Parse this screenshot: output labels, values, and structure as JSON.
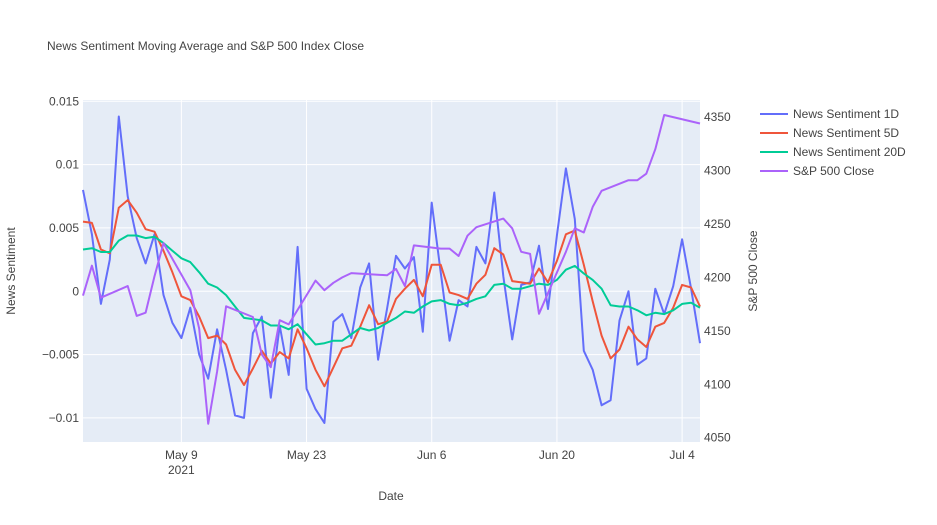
{
  "chart_data": {
    "type": "line",
    "title": "News Sentiment Moving Average and S&P 500 Index Close",
    "xlabel": "Date",
    "ylabel": "News Sentiment",
    "y2label": "S&P 500 Close",
    "x_range": [
      "2021-04-28",
      "2021-07-06"
    ],
    "x_ticks": [
      {
        "date": "2021-05-09",
        "label": "May 9",
        "sublabel": "2021"
      },
      {
        "date": "2021-05-23",
        "label": "May 23",
        "sublabel": ""
      },
      {
        "date": "2021-06-06",
        "label": "Jun 6",
        "sublabel": ""
      },
      {
        "date": "2021-06-20",
        "label": "Jun 20",
        "sublabel": ""
      },
      {
        "date": "2021-07-04",
        "label": "Jul 4",
        "sublabel": ""
      }
    ],
    "ylim": [
      -0.0119,
      0.0151
    ],
    "y_ticks": [
      {
        "value": 0.015,
        "label": "0.015"
      },
      {
        "value": 0.01,
        "label": "0.01"
      },
      {
        "value": 0.005,
        "label": "0.005"
      },
      {
        "value": 0,
        "label": "0"
      },
      {
        "value": -0.005,
        "label": "−0.005"
      },
      {
        "value": -0.01,
        "label": "−0.01"
      }
    ],
    "y2lim": [
      4046,
      4366
    ],
    "y2_ticks": [
      {
        "value": 4050,
        "label": "4050"
      },
      {
        "value": 4100,
        "label": "4100"
      },
      {
        "value": 4150,
        "label": "4150"
      },
      {
        "value": 4200,
        "label": "4200"
      },
      {
        "value": 4250,
        "label": "4250"
      },
      {
        "value": 4300,
        "label": "4300"
      },
      {
        "value": 4350,
        "label": "4350"
      }
    ],
    "grid": true,
    "legend_position": "top-right",
    "series": [
      {
        "name": "News Sentiment 1D",
        "color": "#636efa",
        "axis": "y",
        "x": [
          "2021-04-28",
          "2021-04-29",
          "2021-04-30",
          "2021-05-01",
          "2021-05-02",
          "2021-05-03",
          "2021-05-04",
          "2021-05-05",
          "2021-05-06",
          "2021-05-07",
          "2021-05-08",
          "2021-05-09",
          "2021-05-10",
          "2021-05-11",
          "2021-05-12",
          "2021-05-13",
          "2021-05-14",
          "2021-05-15",
          "2021-05-16",
          "2021-05-17",
          "2021-05-18",
          "2021-05-19",
          "2021-05-20",
          "2021-05-21",
          "2021-05-22",
          "2021-05-23",
          "2021-05-24",
          "2021-05-25",
          "2021-05-26",
          "2021-05-27",
          "2021-05-28",
          "2021-05-29",
          "2021-05-30",
          "2021-05-31",
          "2021-06-01",
          "2021-06-02",
          "2021-06-03",
          "2021-06-04",
          "2021-06-05",
          "2021-06-06",
          "2021-06-07",
          "2021-06-08",
          "2021-06-09",
          "2021-06-10",
          "2021-06-11",
          "2021-06-12",
          "2021-06-13",
          "2021-06-14",
          "2021-06-15",
          "2021-06-16",
          "2021-06-17",
          "2021-06-18",
          "2021-06-19",
          "2021-06-20",
          "2021-06-21",
          "2021-06-22",
          "2021-06-23",
          "2021-06-24",
          "2021-06-25",
          "2021-06-26",
          "2021-06-27",
          "2021-06-28",
          "2021-06-29",
          "2021-06-30",
          "2021-07-01",
          "2021-07-02",
          "2021-07-03",
          "2021-07-04",
          "2021-07-05",
          "2021-07-06"
        ],
        "values": [
          0.008,
          0.0045,
          -0.001,
          0.0025,
          0.0138,
          0.0075,
          0.0042,
          0.0022,
          0.0045,
          -0.0003,
          -0.0025,
          -0.0037,
          -0.0013,
          -0.005,
          -0.0069,
          -0.003,
          -0.0062,
          -0.0098,
          -0.01,
          -0.0033,
          -0.002,
          -0.0084,
          -0.0027,
          -0.0066,
          0.0035,
          -0.0077,
          -0.0093,
          -0.0104,
          -0.0024,
          -0.0018,
          -0.0037,
          0.0003,
          0.0022,
          -0.0054,
          -0.0014,
          0.0028,
          0.0018,
          0.0027,
          -0.0032,
          0.007,
          0.0015,
          -0.0039,
          -0.0007,
          -0.0012,
          0.0035,
          0.0022,
          0.0078,
          0.0012,
          -0.0038,
          0.0005,
          0.0007,
          0.0036,
          -0.0014,
          0.0044,
          0.0097,
          0.0057,
          -0.0047,
          -0.0062,
          -0.009,
          -0.0086,
          -0.0023,
          0.0,
          -0.0058,
          -0.0053,
          0.0002,
          -0.0018,
          0.0004,
          0.0041,
          0.0002,
          -0.0041
        ]
      },
      {
        "name": "News Sentiment 5D",
        "color": "#ef553b",
        "axis": "y",
        "x": [
          "2021-04-28",
          "2021-04-29",
          "2021-04-30",
          "2021-05-01",
          "2021-05-02",
          "2021-05-03",
          "2021-05-04",
          "2021-05-05",
          "2021-05-06",
          "2021-05-07",
          "2021-05-08",
          "2021-05-09",
          "2021-05-10",
          "2021-05-11",
          "2021-05-12",
          "2021-05-13",
          "2021-05-14",
          "2021-05-15",
          "2021-05-16",
          "2021-05-17",
          "2021-05-18",
          "2021-05-19",
          "2021-05-20",
          "2021-05-21",
          "2021-05-22",
          "2021-05-23",
          "2021-05-24",
          "2021-05-25",
          "2021-05-26",
          "2021-05-27",
          "2021-05-28",
          "2021-05-29",
          "2021-05-30",
          "2021-05-31",
          "2021-06-01",
          "2021-06-02",
          "2021-06-03",
          "2021-06-04",
          "2021-06-05",
          "2021-06-06",
          "2021-06-07",
          "2021-06-08",
          "2021-06-09",
          "2021-06-10",
          "2021-06-11",
          "2021-06-12",
          "2021-06-13",
          "2021-06-14",
          "2021-06-15",
          "2021-06-16",
          "2021-06-17",
          "2021-06-18",
          "2021-06-19",
          "2021-06-20",
          "2021-06-21",
          "2021-06-22",
          "2021-06-23",
          "2021-06-24",
          "2021-06-25",
          "2021-06-26",
          "2021-06-27",
          "2021-06-28",
          "2021-06-29",
          "2021-06-30",
          "2021-07-01",
          "2021-07-02",
          "2021-07-03",
          "2021-07-04",
          "2021-07-05",
          "2021-07-06"
        ],
        "values": [
          0.0055,
          0.0054,
          0.0033,
          0.003,
          0.0066,
          0.0072,
          0.0062,
          0.0049,
          0.0047,
          0.0032,
          0.0015,
          -0.0004,
          -0.0007,
          -0.002,
          -0.0037,
          -0.0035,
          -0.0042,
          -0.0062,
          -0.0074,
          -0.0061,
          -0.0047,
          -0.0057,
          -0.0048,
          -0.0053,
          -0.003,
          -0.0045,
          -0.0062,
          -0.0075,
          -0.006,
          -0.0045,
          -0.0043,
          -0.0028,
          -0.0011,
          -0.0026,
          -0.0024,
          -0.0006,
          0.0002,
          0.0009,
          -0.0004,
          0.0021,
          0.0021,
          -0.0001,
          -0.0003,
          -0.0006,
          0.0006,
          0.0013,
          0.0034,
          0.0029,
          0.0008,
          0.0007,
          0.0006,
          0.0018,
          0.0007,
          0.0024,
          0.0045,
          0.0048,
          0.0021,
          -0.0008,
          -0.0035,
          -0.0053,
          -0.0046,
          -0.0028,
          -0.0038,
          -0.0044,
          -0.0028,
          -0.0025,
          -0.0013,
          0.0005,
          0.0003,
          -0.0012
        ]
      },
      {
        "name": "News Sentiment 20D",
        "color": "#00cc96",
        "axis": "y",
        "x": [
          "2021-04-28",
          "2021-04-29",
          "2021-04-30",
          "2021-05-01",
          "2021-05-02",
          "2021-05-03",
          "2021-05-04",
          "2021-05-05",
          "2021-05-06",
          "2021-05-07",
          "2021-05-08",
          "2021-05-09",
          "2021-05-10",
          "2021-05-11",
          "2021-05-12",
          "2021-05-13",
          "2021-05-14",
          "2021-05-15",
          "2021-05-16",
          "2021-05-17",
          "2021-05-18",
          "2021-05-19",
          "2021-05-20",
          "2021-05-21",
          "2021-05-22",
          "2021-05-23",
          "2021-05-24",
          "2021-05-25",
          "2021-05-26",
          "2021-05-27",
          "2021-05-28",
          "2021-05-29",
          "2021-05-30",
          "2021-05-31",
          "2021-06-01",
          "2021-06-02",
          "2021-06-03",
          "2021-06-04",
          "2021-06-05",
          "2021-06-06",
          "2021-06-07",
          "2021-06-08",
          "2021-06-09",
          "2021-06-10",
          "2021-06-11",
          "2021-06-12",
          "2021-06-13",
          "2021-06-14",
          "2021-06-15",
          "2021-06-16",
          "2021-06-17",
          "2021-06-18",
          "2021-06-19",
          "2021-06-20",
          "2021-06-21",
          "2021-06-22",
          "2021-06-23",
          "2021-06-24",
          "2021-06-25",
          "2021-06-26",
          "2021-06-27",
          "2021-06-28",
          "2021-06-29",
          "2021-06-30",
          "2021-07-01",
          "2021-07-02",
          "2021-07-03",
          "2021-07-04",
          "2021-07-05",
          "2021-07-06"
        ],
        "values": [
          0.0033,
          0.0034,
          0.0031,
          0.0031,
          0.004,
          0.0044,
          0.0044,
          0.0042,
          0.0043,
          0.0038,
          0.0032,
          0.0026,
          0.0023,
          0.0015,
          0.0006,
          0.0003,
          -0.0003,
          -0.0012,
          -0.0021,
          -0.0022,
          -0.0023,
          -0.0027,
          -0.0027,
          -0.003,
          -0.0026,
          -0.0034,
          -0.0042,
          -0.0041,
          -0.0039,
          -0.0039,
          -0.0034,
          -0.0029,
          -0.0031,
          -0.0029,
          -0.0025,
          -0.0021,
          -0.0016,
          -0.0017,
          -0.0012,
          -0.0008,
          -0.0007,
          -0.001,
          -0.0011,
          -0.0009,
          -0.0006,
          -0.0004,
          0.0005,
          0.0006,
          0.0002,
          0.0002,
          0.0004,
          0.0006,
          0.0005,
          0.0009,
          0.0017,
          0.002,
          0.0014,
          0.0009,
          0.0002,
          -0.0011,
          -0.0012,
          -0.0012,
          -0.0015,
          -0.0019,
          -0.0017,
          -0.0018,
          -0.0015,
          -0.001,
          -0.0009,
          -0.0013
        ]
      },
      {
        "name": "S&P 500 Close",
        "color": "#ab63fa",
        "axis": "y2",
        "x": [
          "2021-04-28",
          "2021-04-29",
          "2021-04-30",
          "2021-05-03",
          "2021-05-04",
          "2021-05-05",
          "2021-05-06",
          "2021-05-07",
          "2021-05-10",
          "2021-05-11",
          "2021-05-12",
          "2021-05-13",
          "2021-05-14",
          "2021-05-17",
          "2021-05-18",
          "2021-05-19",
          "2021-05-20",
          "2021-05-21",
          "2021-05-24",
          "2021-05-25",
          "2021-05-26",
          "2021-05-27",
          "2021-05-28",
          "2021-06-01",
          "2021-06-02",
          "2021-06-03",
          "2021-06-04",
          "2021-06-07",
          "2021-06-08",
          "2021-06-09",
          "2021-06-10",
          "2021-06-11",
          "2021-06-14",
          "2021-06-15",
          "2021-06-16",
          "2021-06-17",
          "2021-06-18",
          "2021-06-21",
          "2021-06-22",
          "2021-06-23",
          "2021-06-24",
          "2021-06-25",
          "2021-06-28",
          "2021-06-29",
          "2021-06-30",
          "2021-07-01",
          "2021-07-02",
          "2021-07-06"
        ],
        "values": [
          4183,
          4211,
          4181,
          4192,
          4164,
          4167,
          4201,
          4232,
          4188,
          4152,
          4063,
          4112,
          4173,
          4163,
          4128,
          4116,
          4160,
          4156,
          4197,
          4188,
          4195,
          4200,
          4204,
          4202,
          4208,
          4192,
          4230,
          4227,
          4227,
          4220,
          4239,
          4247,
          4255,
          4246,
          4224,
          4222,
          4166,
          4224,
          4246,
          4242,
          4266,
          4281,
          4291,
          4291,
          4297,
          4320,
          4352,
          4344
        ]
      }
    ]
  }
}
